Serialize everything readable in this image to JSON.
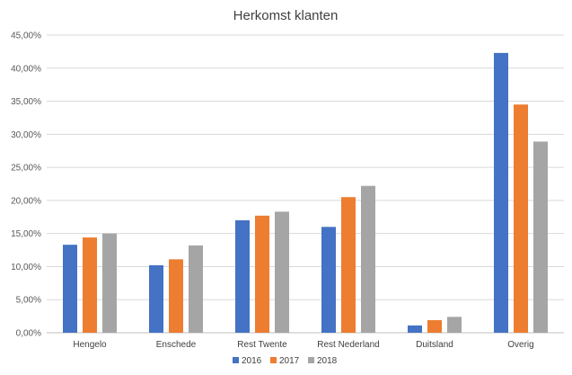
{
  "chart_data": {
    "type": "bar",
    "title": "Herkomst klanten",
    "xlabel": "",
    "ylabel": "",
    "categories": [
      "Hengelo",
      "Enschede",
      "Rest Twente",
      "Rest Nederland",
      "Duitsland",
      "Overig"
    ],
    "series": [
      {
        "name": "2016",
        "color": "#4472C4",
        "values": [
          13.3,
          10.2,
          17.0,
          16.0,
          1.1,
          42.3
        ]
      },
      {
        "name": "2017",
        "color": "#ED7D31",
        "values": [
          14.4,
          11.1,
          17.7,
          20.5,
          1.9,
          34.5
        ]
      },
      {
        "name": "2018",
        "color": "#A5A5A5",
        "values": [
          15.0,
          13.2,
          18.3,
          22.2,
          2.4,
          28.9
        ]
      }
    ],
    "yticks": [
      "0,00%",
      "5,00%",
      "10,00%",
      "15,00%",
      "20,00%",
      "25,00%",
      "30,00%",
      "35,00%",
      "40,00%",
      "45,00%"
    ],
    "ylim": [
      0,
      45
    ],
    "unit": "%",
    "grid": true,
    "legend_position": "bottom"
  }
}
